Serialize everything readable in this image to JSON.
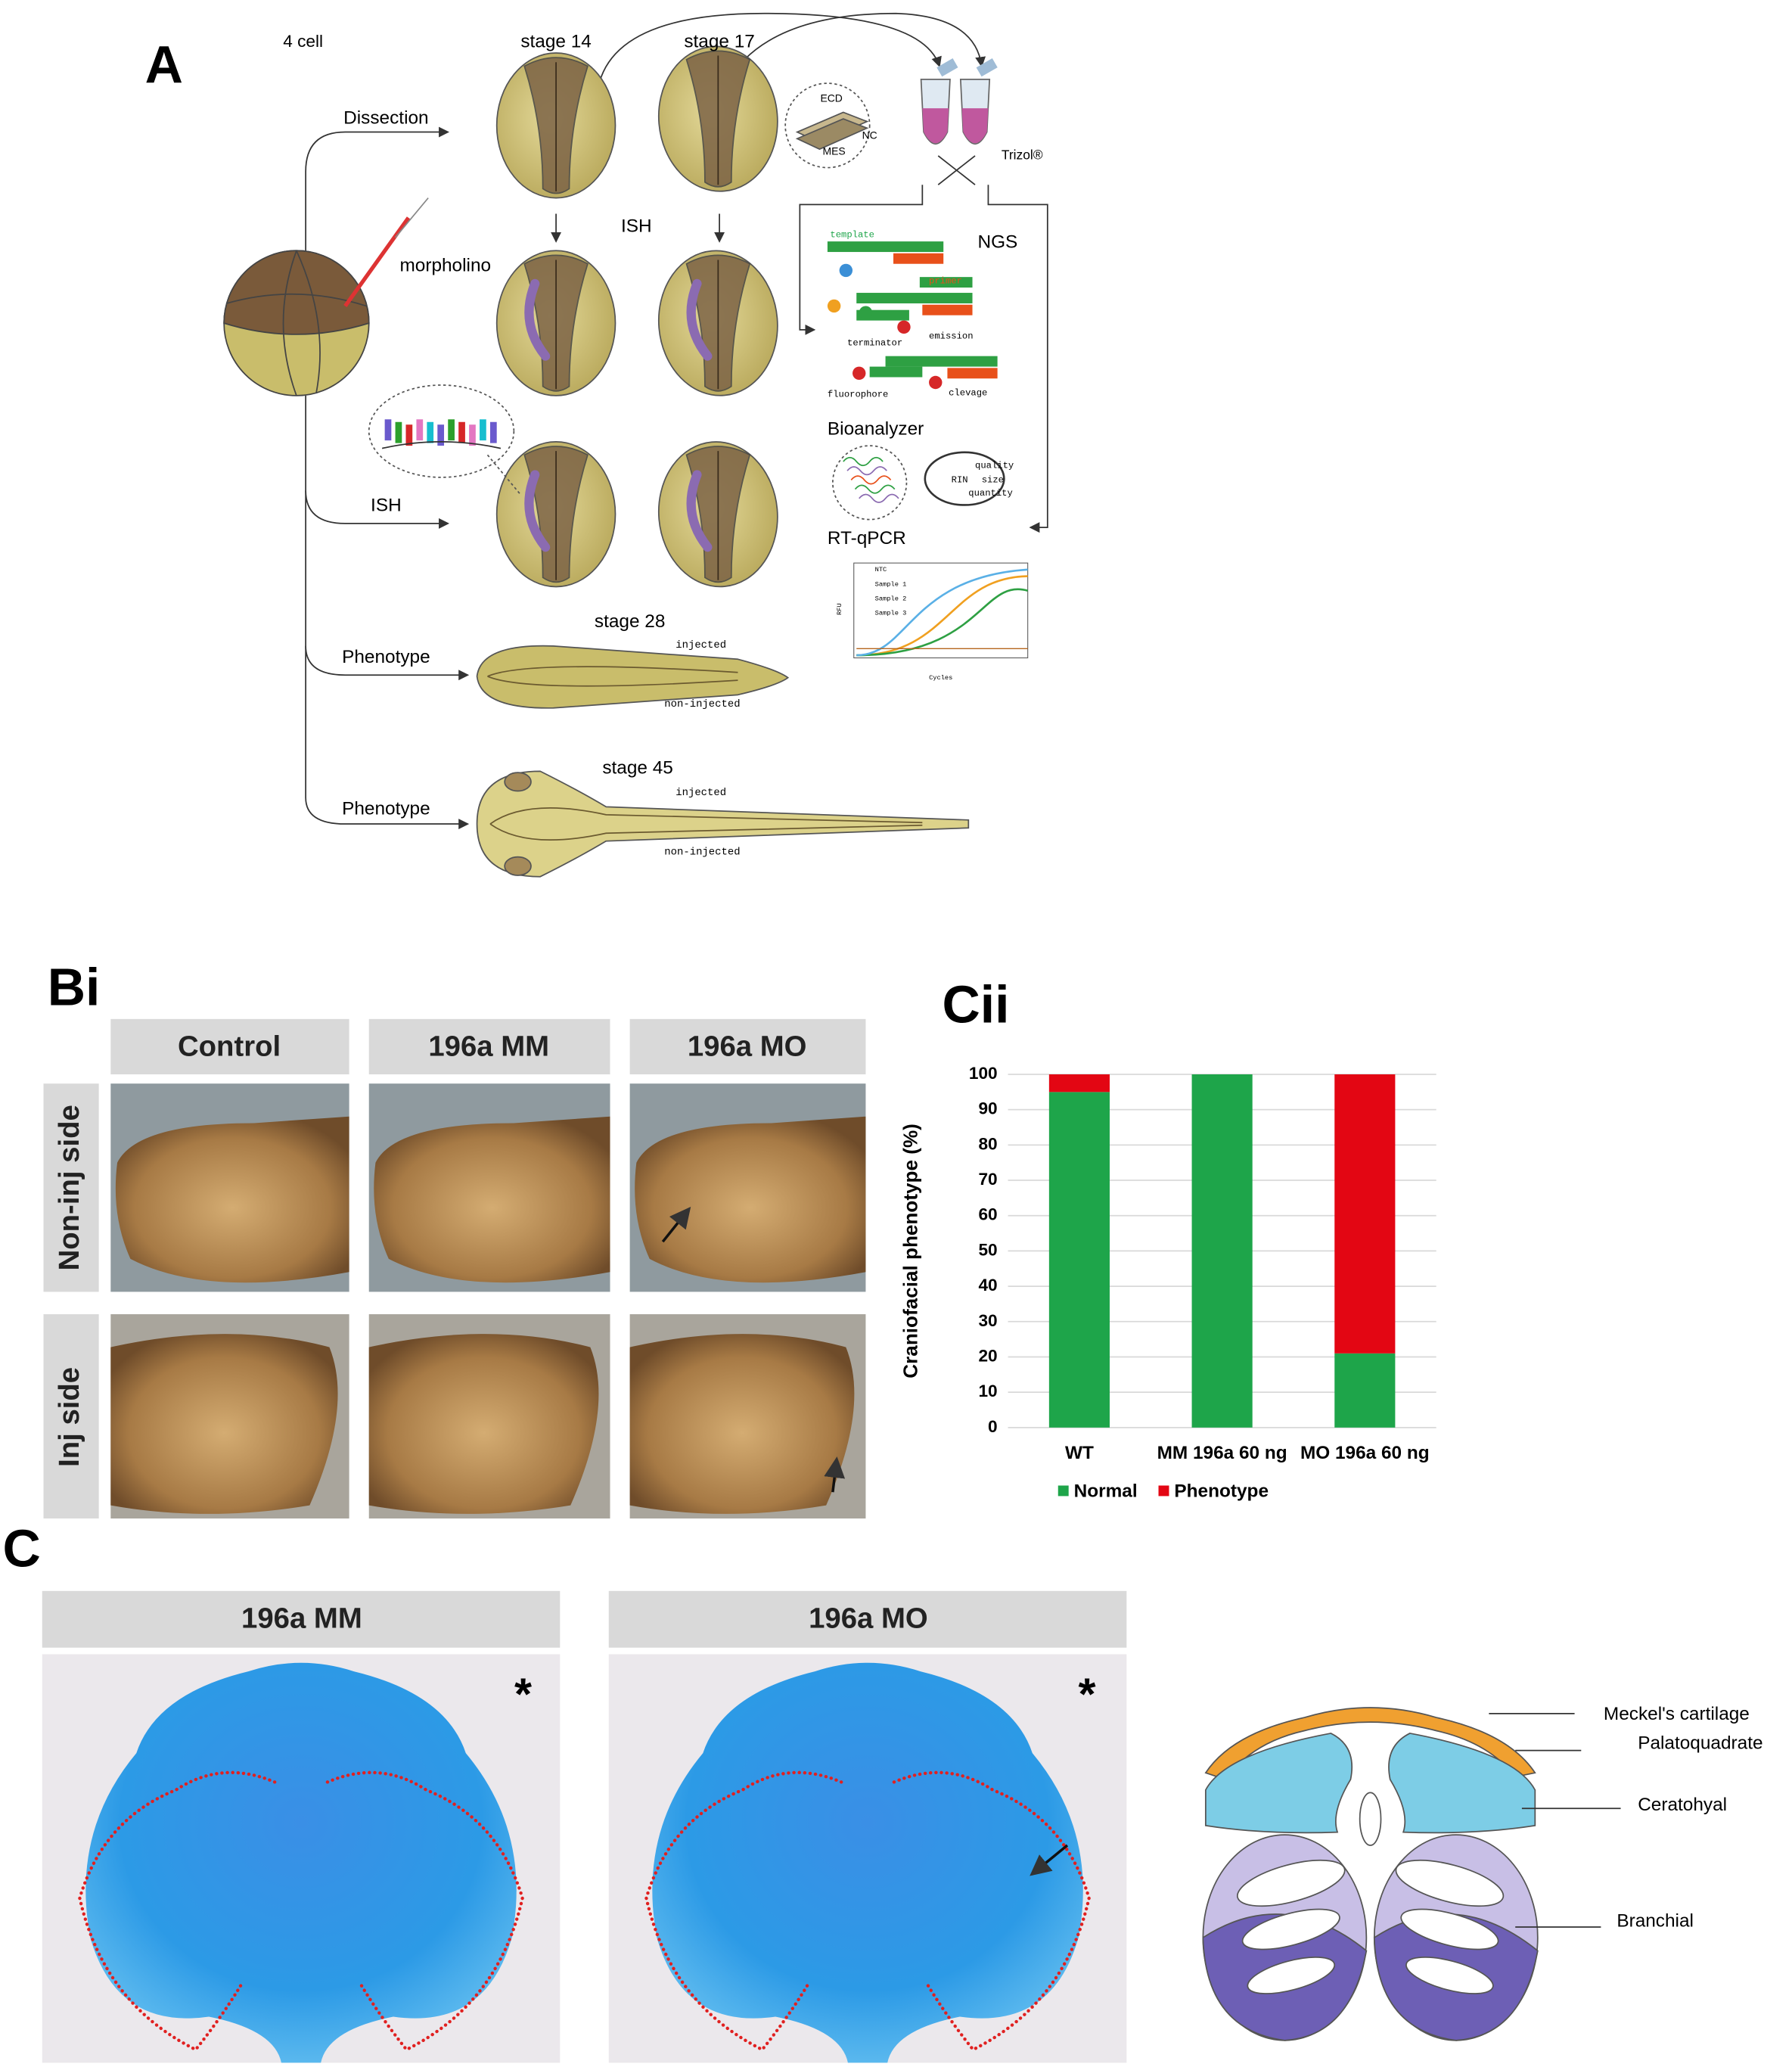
{
  "panel_a": {
    "label": "A",
    "stages": [
      "4 cell",
      "stage 14",
      "stage 17",
      "stage 28",
      "stage 45"
    ],
    "steps": [
      "Dissection",
      "morpholino",
      "ISH",
      "ISH",
      "Phenotype",
      "Phenotype"
    ],
    "tissues": [
      "ECD",
      "NC",
      "MES"
    ],
    "reagent": "Trizol®",
    "methods": [
      "NGS",
      "Bioanalyzer",
      "RT-qPCR"
    ],
    "ngs_labels": [
      "template",
      "primer",
      "terminator",
      "emission",
      "fluorophore",
      "clevage"
    ],
    "bioanalyzer_labels": [
      "quality",
      "RIN",
      "size",
      "quantity"
    ],
    "qpcr_legend": [
      "NTC",
      "Sample 1",
      "Sample 2",
      "Sample 3"
    ],
    "qpcr_axes": [
      "RFU",
      "Cycles"
    ],
    "orientation": [
      "injected",
      "non-injected",
      "injected",
      "non-injected"
    ]
  },
  "panel_b": {
    "label": "Bi",
    "columns": [
      "Control",
      "196a MM",
      "196a MO"
    ],
    "rows": [
      "Non-inj side",
      "Inj side"
    ]
  },
  "chart_data": {
    "type": "stacked_bar",
    "label": "Cii",
    "ylabel": "Craniofacial phenotype (%)",
    "categories": [
      "WT",
      "MM 196a 60 ng",
      "MO 196a 60 ng"
    ],
    "series": [
      {
        "name": "Normal",
        "color": "#1ea54a",
        "values": [
          95,
          100,
          21
        ]
      },
      {
        "name": "Phenotype",
        "color": "#e30613",
        "values": [
          5,
          0,
          79
        ]
      }
    ],
    "ylim": [
      0,
      100
    ],
    "yticks": [
      0,
      10,
      20,
      30,
      40,
      50,
      60,
      70,
      80,
      90,
      100
    ],
    "grid": true,
    "legend": "bottom"
  },
  "panel_c": {
    "label": "C",
    "columns": [
      "196a MM",
      "196a MO"
    ],
    "markers": [
      "*",
      "*"
    ],
    "cartilages": [
      "Meckel's cartilage",
      "Palatoquadrate",
      "Ceratohyal",
      "Branchial"
    ]
  }
}
